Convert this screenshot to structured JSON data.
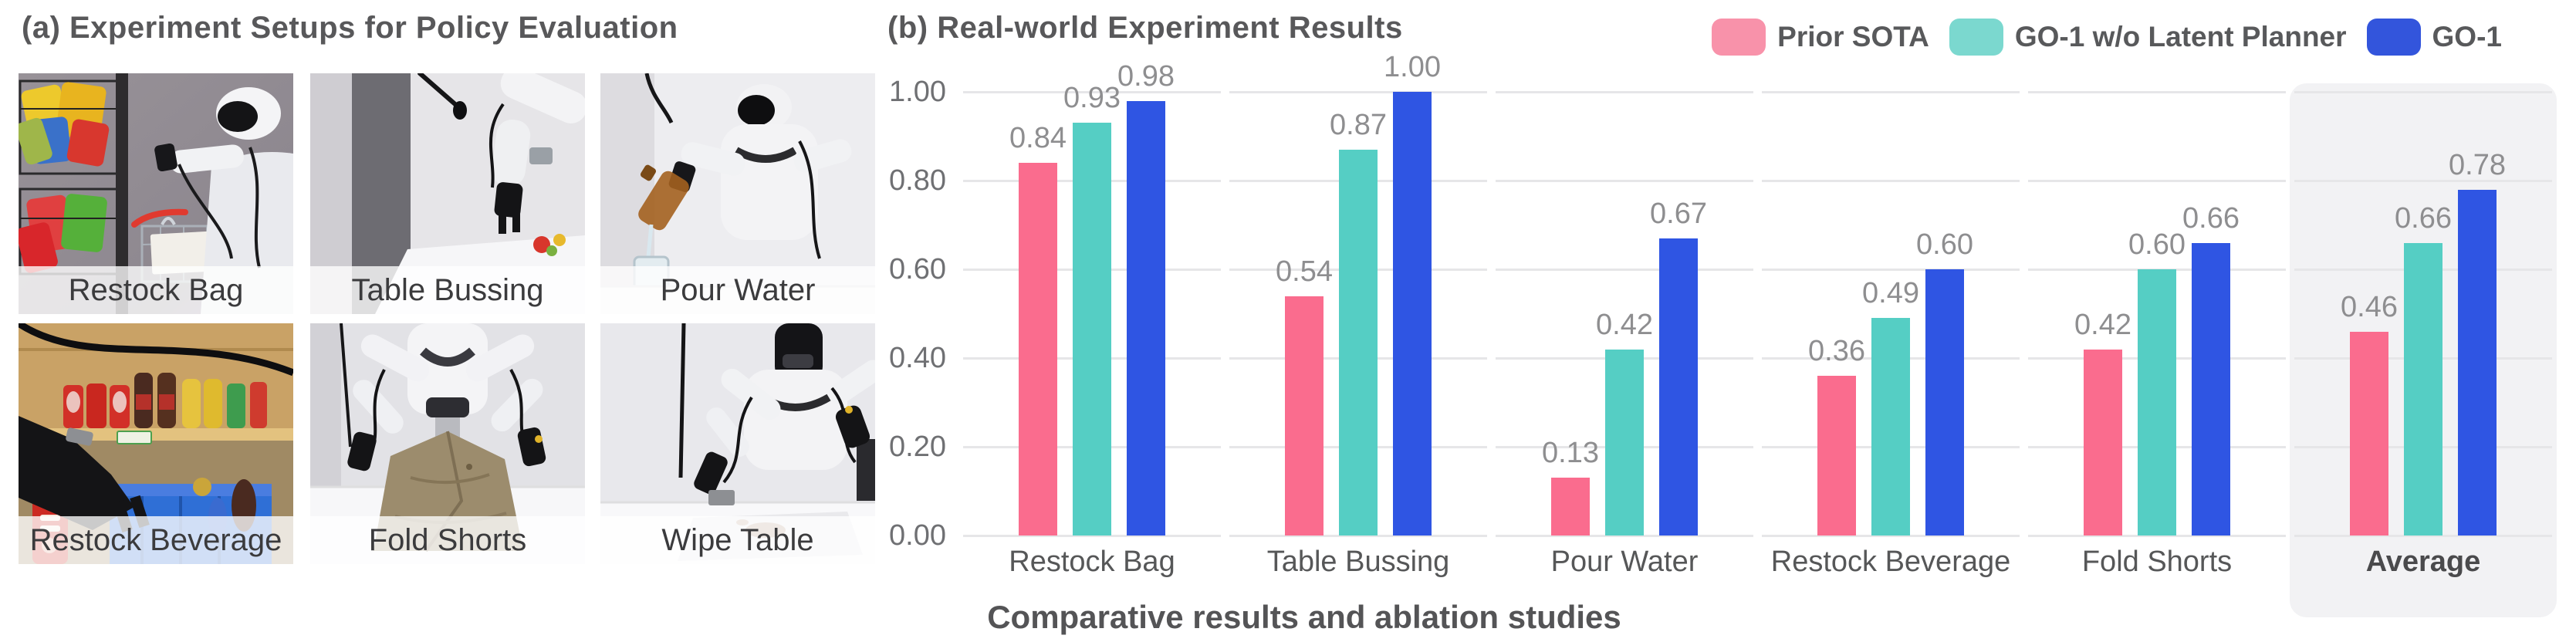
{
  "panel_a": {
    "title": "(a) Experiment Setups for Policy Evaluation",
    "photos": [
      {
        "label": "Restock Bag"
      },
      {
        "label": "Table Bussing"
      },
      {
        "label": "Pour Water"
      },
      {
        "label": "Restock Beverage"
      },
      {
        "label": "Fold Shorts"
      },
      {
        "label": "Wipe Table"
      }
    ]
  },
  "panel_b": {
    "title": "(b) Real-world Experiment Results",
    "caption": "Comparative results and ablation studies",
    "legend": [
      {
        "label": "Prior SOTA",
        "color": "#F892AA"
      },
      {
        "label": "GO-1 w/o Latent Planner",
        "color": "#7BD8CF"
      },
      {
        "label": "GO-1",
        "color": "#3355DC"
      }
    ]
  },
  "chart_data": {
    "type": "bar",
    "title": "(b) Real-world Experiment Results",
    "categories": [
      "Restock Bag",
      "Table Bussing",
      "Pour Water",
      "Restock Beverage",
      "Fold Shorts",
      "Average"
    ],
    "series": [
      {
        "name": "Prior SOTA",
        "color": "#FA6C8E",
        "values": [
          0.84,
          0.54,
          0.13,
          0.36,
          0.42,
          0.46
        ]
      },
      {
        "name": "GO-1 w/o Latent Planner",
        "color": "#55CEC4",
        "values": [
          0.93,
          0.87,
          0.42,
          0.49,
          0.6,
          0.66
        ]
      },
      {
        "name": "GO-1",
        "color": "#2F55E3",
        "values": [
          0.98,
          1.0,
          0.67,
          0.6,
          0.66,
          0.78
        ]
      }
    ],
    "yticks": [
      "0.00",
      "0.20",
      "0.40",
      "0.60",
      "0.80",
      "1.00"
    ],
    "ylim": [
      0,
      1.0
    ],
    "value_label_format": "2dp",
    "highlight_category": "Average",
    "grid": true,
    "legend_position": "top-right",
    "xlabel": "",
    "ylabel": ""
  }
}
